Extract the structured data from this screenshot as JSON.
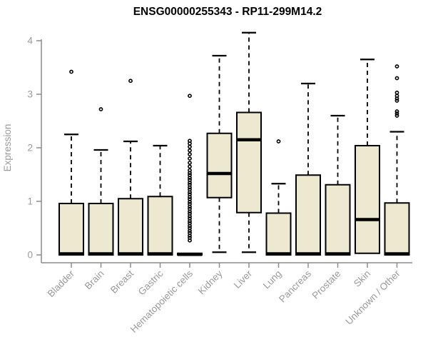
{
  "colors": {
    "background": "#FFFFFF",
    "box_fill": "#EDE8D0",
    "box_stroke": "#000000",
    "median_stroke": "#000000",
    "whisker_stroke": "#000000",
    "outlier_stroke": "#000000",
    "axis": "#8C8C8C",
    "tick_text": "#9A9A9A",
    "title_text": "#000000"
  },
  "chart_data": {
    "type": "boxplot",
    "title": "ENSG00000255343 - RP11-299M14.2",
    "ylabel": "Expression",
    "xlabel": "",
    "ylim": [
      0,
      4
    ],
    "yticks": [
      0,
      1,
      2,
      3,
      4
    ],
    "grid": false,
    "legend": "none",
    "categories": [
      "Bladder",
      "Brain",
      "Breast",
      "Gastric",
      "Hematopoietic cells",
      "Kidney",
      "Liver",
      "Lung",
      "Pancreas",
      "Prostate",
      "Skin",
      "Unknown / Other"
    ],
    "series": [
      {
        "name": "Bladder",
        "q1": 0,
        "median": 0.02,
        "q3": 0.96,
        "whisker_low": 0,
        "whisker_high": 2.25,
        "outliers": [
          3.42
        ]
      },
      {
        "name": "Brain",
        "q1": 0,
        "median": 0.02,
        "q3": 0.96,
        "whisker_low": 0,
        "whisker_high": 1.96,
        "outliers": [
          2.72
        ]
      },
      {
        "name": "Breast",
        "q1": 0,
        "median": 0.02,
        "q3": 1.05,
        "whisker_low": 0,
        "whisker_high": 2.12,
        "outliers": [
          3.25
        ]
      },
      {
        "name": "Gastric",
        "q1": 0,
        "median": 0.02,
        "q3": 1.09,
        "whisker_low": 0,
        "whisker_high": 2.04,
        "outliers": []
      },
      {
        "name": "Hematopoietic cells",
        "q1": 0,
        "median": 0.01,
        "q3": 0.03,
        "whisker_low": 0,
        "whisker_high": 0.03,
        "outliers": [
          0.27,
          0.32,
          0.36,
          0.41,
          0.45,
          0.5,
          0.54,
          0.59,
          0.63,
          0.68,
          0.72,
          0.77,
          0.81,
          0.86,
          0.9,
          0.95,
          0.99,
          1.04,
          1.08,
          1.13,
          1.17,
          1.22,
          1.26,
          1.31,
          1.35,
          1.4,
          1.44,
          1.49,
          1.53,
          1.58,
          1.65,
          1.72,
          1.8,
          1.88,
          1.95,
          2.02,
          2.08,
          2.13,
          2.97
        ]
      },
      {
        "name": "Kidney",
        "q1": 1.07,
        "median": 1.52,
        "q3": 2.27,
        "whisker_low": 0.05,
        "whisker_high": 3.72,
        "outliers": []
      },
      {
        "name": "Liver",
        "q1": 0.79,
        "median": 2.15,
        "q3": 2.66,
        "whisker_low": 0.05,
        "whisker_high": 4.15,
        "outliers": []
      },
      {
        "name": "Lung",
        "q1": 0,
        "median": 0.02,
        "q3": 0.78,
        "whisker_low": 0,
        "whisker_high": 1.33,
        "outliers": [
          2.12
        ]
      },
      {
        "name": "Pancreas",
        "q1": 0,
        "median": 0.02,
        "q3": 1.49,
        "whisker_low": 0,
        "whisker_high": 3.2,
        "outliers": []
      },
      {
        "name": "Prostate",
        "q1": 0,
        "median": 0.02,
        "q3": 1.31,
        "whisker_low": 0,
        "whisker_high": 2.6,
        "outliers": []
      },
      {
        "name": "Skin",
        "q1": 0.03,
        "median": 0.66,
        "q3": 2.04,
        "whisker_low": 0.03,
        "whisker_high": 3.65,
        "outliers": []
      },
      {
        "name": "Unknown / Other",
        "q1": 0,
        "median": 0.02,
        "q3": 0.97,
        "whisker_low": 0,
        "whisker_high": 2.3,
        "outliers": [
          2.6,
          2.64,
          2.68,
          2.88,
          2.92,
          2.97,
          3.03,
          3.3,
          3.52
        ]
      }
    ]
  }
}
